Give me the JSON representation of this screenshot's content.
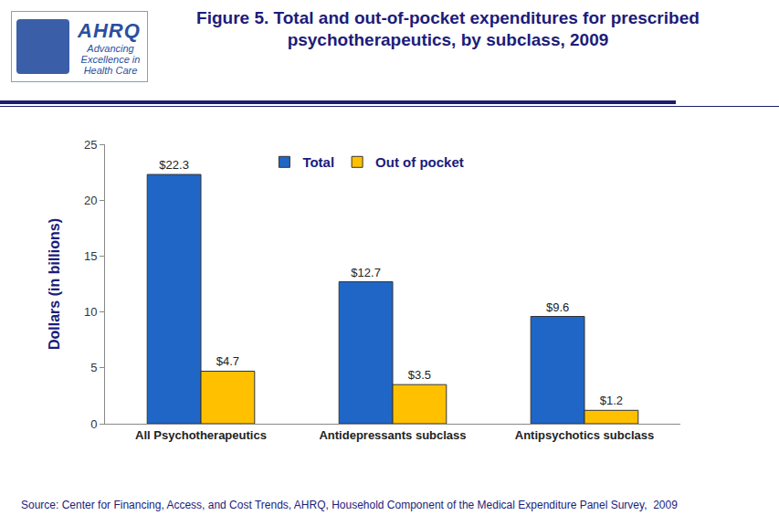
{
  "logo": {
    "name": "AHRQ",
    "tagline": [
      "Advancing",
      "Excellence in",
      "Health Care"
    ]
  },
  "chart_data": {
    "type": "bar",
    "title": [
      "Figure 5. Total and out-of-pocket expenditures for prescribed",
      "psychotherapeutics, by subclass, 2009"
    ],
    "ylabel": "Dollars (in billions)",
    "source": "Source: Center for Financing, Access, and Cost Trends, AHRQ, Household Component of the Medical Expenditure Panel Survey,  2009",
    "categories": [
      "All Psychotherapeutics",
      "Antidepressants subclass",
      "Antipsychotics subclass"
    ],
    "series": [
      {
        "name": "Total",
        "color": "#1f66c6",
        "values": [
          22.3,
          12.7,
          9.6
        ],
        "value_labels": [
          "$22.3",
          "$12.7",
          "$9.6"
        ]
      },
      {
        "name": "Out of pocket",
        "color": "#ffc000",
        "values": [
          4.7,
          3.5,
          1.2
        ],
        "value_labels": [
          "$4.7",
          "$3.5",
          "$1.2"
        ]
      }
    ],
    "ylim": [
      0,
      25
    ],
    "yticks": [
      0,
      5,
      10,
      15,
      20,
      25
    ],
    "grid": false,
    "legend": "top",
    "data_labels": true
  }
}
